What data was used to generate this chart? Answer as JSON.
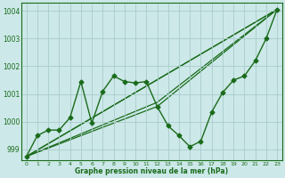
{
  "title": "Graphe pression niveau de la mer (hPa)",
  "xlim": [
    -0.5,
    23.5
  ],
  "ylim": [
    998.6,
    1004.3
  ],
  "yticks": [
    999,
    1000,
    1001,
    1002,
    1003,
    1004
  ],
  "xticks": [
    0,
    1,
    2,
    3,
    4,
    5,
    6,
    7,
    8,
    9,
    10,
    11,
    12,
    13,
    14,
    15,
    16,
    17,
    18,
    19,
    20,
    21,
    22,
    23
  ],
  "bg_color": "#cce8e8",
  "grid_color": "#aacccc",
  "line_color": "#1a6b1a",
  "main_x": [
    0,
    1,
    2,
    3,
    4,
    5,
    6,
    7,
    8,
    9,
    10,
    11,
    12,
    13,
    14,
    15,
    16,
    17,
    18,
    19,
    20,
    21,
    22,
    23
  ],
  "main_y": [
    998.75,
    999.5,
    999.7,
    999.7,
    1000.15,
    1001.45,
    999.95,
    1001.1,
    1001.65,
    1001.45,
    1001.4,
    1001.45,
    1000.55,
    999.85,
    999.5,
    999.1,
    999.3,
    1000.35,
    1001.05,
    1001.5,
    1001.65,
    1002.2,
    1003.0,
    1004.05
  ],
  "extra_lines": [
    {
      "x": [
        0,
        23
      ],
      "y": [
        998.75,
        1004.05
      ]
    },
    {
      "x": [
        0,
        23
      ],
      "y": [
        998.75,
        1004.05
      ]
    },
    {
      "x": [
        0,
        12,
        23
      ],
      "y": [
        998.75,
        1000.55,
        1004.05
      ]
    },
    {
      "x": [
        0,
        12,
        23
      ],
      "y": [
        998.75,
        1000.7,
        1004.05
      ]
    }
  ]
}
